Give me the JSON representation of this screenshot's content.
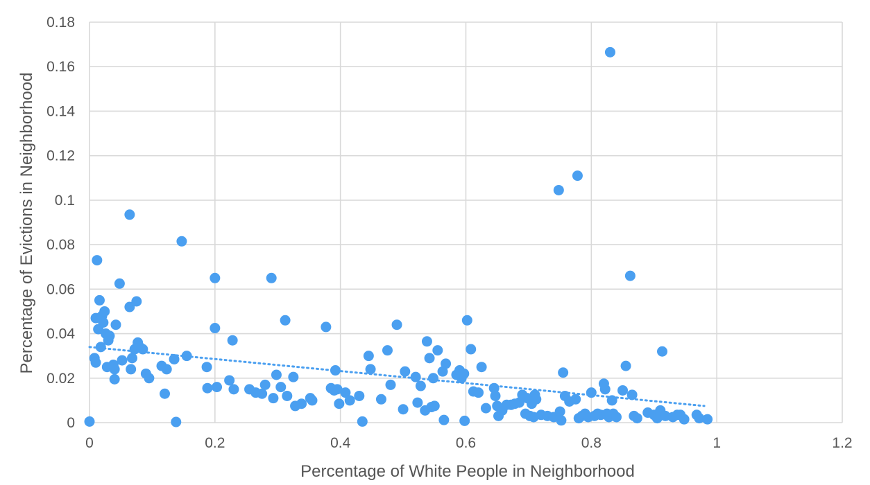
{
  "chart_data": {
    "type": "scatter",
    "xlabel": "Percentage of White People in Neighborhood",
    "ylabel": "Percentage of Evictions in Neighborhood",
    "xlim": [
      0,
      1.2
    ],
    "ylim": [
      0,
      0.18
    ],
    "x_ticks": [
      "0",
      "0.2",
      "0.4",
      "0.6",
      "0.8",
      "1",
      "1.2"
    ],
    "y_ticks": [
      "0",
      "0.02",
      "0.04",
      "0.06",
      "0.08",
      "0.1",
      "0.12",
      "0.14",
      "0.16",
      "0.18"
    ],
    "x_tick_values": [
      0,
      0.2,
      0.4,
      0.6,
      0.8,
      1.0,
      1.2
    ],
    "y_tick_values": [
      0,
      0.02,
      0.04,
      0.06,
      0.08,
      0.1,
      0.12,
      0.14,
      0.16,
      0.18
    ],
    "grid": true,
    "legend": "none",
    "point_color": "#4a9ff0",
    "trendline": {
      "style": "dotted",
      "x": [
        0,
        0.98
      ],
      "y": [
        0.034,
        0.0075
      ]
    },
    "points": [
      [
        0.0,
        0.0005
      ],
      [
        0.008,
        0.029
      ],
      [
        0.01,
        0.027
      ],
      [
        0.01,
        0.047
      ],
      [
        0.012,
        0.073
      ],
      [
        0.014,
        0.042
      ],
      [
        0.016,
        0.055
      ],
      [
        0.018,
        0.034
      ],
      [
        0.02,
        0.048
      ],
      [
        0.022,
        0.045
      ],
      [
        0.024,
        0.05
      ],
      [
        0.026,
        0.04
      ],
      [
        0.028,
        0.025
      ],
      [
        0.03,
        0.037
      ],
      [
        0.032,
        0.039
      ],
      [
        0.038,
        0.026
      ],
      [
        0.04,
        0.024
      ],
      [
        0.04,
        0.0195
      ],
      [
        0.042,
        0.044
      ],
      [
        0.048,
        0.0625
      ],
      [
        0.052,
        0.028
      ],
      [
        0.064,
        0.0935
      ],
      [
        0.064,
        0.052
      ],
      [
        0.066,
        0.024
      ],
      [
        0.068,
        0.029
      ],
      [
        0.072,
        0.033
      ],
      [
        0.075,
        0.0545
      ],
      [
        0.077,
        0.036
      ],
      [
        0.08,
        0.034
      ],
      [
        0.085,
        0.033
      ],
      [
        0.09,
        0.022
      ],
      [
        0.095,
        0.02
      ],
      [
        0.115,
        0.0255
      ],
      [
        0.12,
        0.013
      ],
      [
        0.123,
        0.024
      ],
      [
        0.135,
        0.0285
      ],
      [
        0.138,
        0.0003
      ],
      [
        0.147,
        0.0815
      ],
      [
        0.155,
        0.03
      ],
      [
        0.187,
        0.025
      ],
      [
        0.188,
        0.0155
      ],
      [
        0.2,
        0.065
      ],
      [
        0.2,
        0.0425
      ],
      [
        0.203,
        0.016
      ],
      [
        0.223,
        0.019
      ],
      [
        0.228,
        0.037
      ],
      [
        0.23,
        0.015
      ],
      [
        0.255,
        0.015
      ],
      [
        0.265,
        0.0135
      ],
      [
        0.275,
        0.013
      ],
      [
        0.28,
        0.017
      ],
      [
        0.29,
        0.065
      ],
      [
        0.293,
        0.011
      ],
      [
        0.298,
        0.0215
      ],
      [
        0.305,
        0.016
      ],
      [
        0.312,
        0.046
      ],
      [
        0.315,
        0.012
      ],
      [
        0.325,
        0.0205
      ],
      [
        0.328,
        0.0075
      ],
      [
        0.338,
        0.0085
      ],
      [
        0.352,
        0.011
      ],
      [
        0.355,
        0.01
      ],
      [
        0.377,
        0.043
      ],
      [
        0.385,
        0.0155
      ],
      [
        0.39,
        0.0145
      ],
      [
        0.392,
        0.0235
      ],
      [
        0.395,
        0.015
      ],
      [
        0.398,
        0.0085
      ],
      [
        0.408,
        0.0135
      ],
      [
        0.415,
        0.01
      ],
      [
        0.43,
        0.012
      ],
      [
        0.435,
        0.0005
      ],
      [
        0.445,
        0.03
      ],
      [
        0.448,
        0.024
      ],
      [
        0.465,
        0.0105
      ],
      [
        0.475,
        0.0325
      ],
      [
        0.48,
        0.017
      ],
      [
        0.49,
        0.044
      ],
      [
        0.5,
        0.006
      ],
      [
        0.503,
        0.023
      ],
      [
        0.52,
        0.0205
      ],
      [
        0.523,
        0.009
      ],
      [
        0.528,
        0.0165
      ],
      [
        0.535,
        0.0055
      ],
      [
        0.538,
        0.0365
      ],
      [
        0.542,
        0.029
      ],
      [
        0.545,
        0.007
      ],
      [
        0.548,
        0.02
      ],
      [
        0.55,
        0.0075
      ],
      [
        0.555,
        0.0325
      ],
      [
        0.563,
        0.023
      ],
      [
        0.565,
        0.0012
      ],
      [
        0.568,
        0.0265
      ],
      [
        0.585,
        0.0215
      ],
      [
        0.59,
        0.0235
      ],
      [
        0.593,
        0.02
      ],
      [
        0.597,
        0.022
      ],
      [
        0.598,
        0.0008
      ],
      [
        0.602,
        0.046
      ],
      [
        0.608,
        0.033
      ],
      [
        0.612,
        0.014
      ],
      [
        0.62,
        0.0135
      ],
      [
        0.625,
        0.025
      ],
      [
        0.632,
        0.0065
      ],
      [
        0.645,
        0.0155
      ],
      [
        0.647,
        0.012
      ],
      [
        0.65,
        0.0075
      ],
      [
        0.652,
        0.003
      ],
      [
        0.658,
        0.0055
      ],
      [
        0.665,
        0.008
      ],
      [
        0.672,
        0.008
      ],
      [
        0.678,
        0.0085
      ],
      [
        0.685,
        0.009
      ],
      [
        0.69,
        0.0125
      ],
      [
        0.695,
        0.004
      ],
      [
        0.698,
        0.011
      ],
      [
        0.702,
        0.003
      ],
      [
        0.705,
        0.0085
      ],
      [
        0.708,
        0.0025
      ],
      [
        0.71,
        0.0125
      ],
      [
        0.712,
        0.0105
      ],
      [
        0.72,
        0.0035
      ],
      [
        0.73,
        0.003
      ],
      [
        0.74,
        0.0025
      ],
      [
        0.748,
        0.1045
      ],
      [
        0.75,
        0.005
      ],
      [
        0.752,
        0.001
      ],
      [
        0.755,
        0.0225
      ],
      [
        0.758,
        0.012
      ],
      [
        0.765,
        0.0095
      ],
      [
        0.775,
        0.0105
      ],
      [
        0.778,
        0.111
      ],
      [
        0.78,
        0.002
      ],
      [
        0.785,
        0.003
      ],
      [
        0.79,
        0.004
      ],
      [
        0.795,
        0.0025
      ],
      [
        0.8,
        0.0135
      ],
      [
        0.805,
        0.003
      ],
      [
        0.81,
        0.004
      ],
      [
        0.815,
        0.0035
      ],
      [
        0.82,
        0.0175
      ],
      [
        0.822,
        0.015
      ],
      [
        0.825,
        0.004
      ],
      [
        0.828,
        0.0025
      ],
      [
        0.83,
        0.1665
      ],
      [
        0.833,
        0.01
      ],
      [
        0.835,
        0.004
      ],
      [
        0.84,
        0.0025
      ],
      [
        0.85,
        0.0145
      ],
      [
        0.855,
        0.0255
      ],
      [
        0.862,
        0.066
      ],
      [
        0.865,
        0.0125
      ],
      [
        0.868,
        0.003
      ],
      [
        0.873,
        0.002
      ],
      [
        0.89,
        0.0045
      ],
      [
        0.9,
        0.0035
      ],
      [
        0.905,
        0.002
      ],
      [
        0.91,
        0.0055
      ],
      [
        0.913,
        0.032
      ],
      [
        0.918,
        0.003
      ],
      [
        0.93,
        0.0025
      ],
      [
        0.937,
        0.0035
      ],
      [
        0.942,
        0.0035
      ],
      [
        0.948,
        0.0015
      ],
      [
        0.968,
        0.0035
      ],
      [
        0.972,
        0.002
      ],
      [
        0.985,
        0.0015
      ]
    ]
  }
}
